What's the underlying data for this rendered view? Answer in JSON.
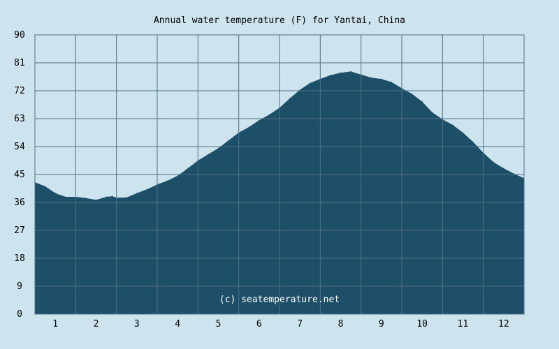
{
  "chart_data": {
    "type": "area",
    "title": "Annual water temperature (F) for Yantai, China",
    "xlabel": "",
    "ylabel": "",
    "x_ticks": [
      "1",
      "2",
      "3",
      "4",
      "5",
      "6",
      "7",
      "8",
      "9",
      "10",
      "11",
      "12"
    ],
    "y_ticks": [
      "0",
      "9",
      "18",
      "27",
      "36",
      "45",
      "54",
      "63",
      "72",
      "81",
      "90"
    ],
    "ylim": [
      0,
      90
    ],
    "xlim": [
      0.5,
      12.5
    ],
    "grid": true,
    "watermark": "(c) seatemperature.net",
    "colors": {
      "background": "#cde3ee",
      "fill": "#1e4f68",
      "grid": "#4f6f86"
    },
    "series": [
      {
        "x": [
          0.5,
          0.75,
          1.0,
          1.25,
          1.5,
          1.75,
          2.0,
          2.25,
          2.4,
          2.5,
          2.75,
          3.0,
          3.25,
          3.5,
          3.75,
          4.0,
          4.25,
          4.5,
          4.75,
          5.0,
          5.25,
          5.5,
          5.75,
          6.0,
          6.25,
          6.5,
          6.75,
          7.0,
          7.25,
          7.5,
          7.75,
          8.0,
          8.25,
          8.5,
          8.75,
          9.0,
          9.25,
          9.5,
          9.75,
          10.0,
          10.25,
          10.5,
          10.75,
          11.0,
          11.25,
          11.5,
          11.75,
          12.0,
          12.25,
          12.5
        ],
        "values": [
          42.5,
          41.2,
          39.0,
          37.8,
          37.8,
          37.4,
          36.8,
          37.8,
          38.0,
          37.5,
          37.6,
          39.0,
          40.2,
          41.8,
          43.0,
          44.6,
          47.0,
          49.5,
          51.5,
          53.5,
          56.0,
          58.5,
          60.3,
          62.5,
          64.3,
          66.5,
          69.5,
          72.3,
          74.5,
          75.8,
          77.0,
          77.8,
          78.2,
          77.2,
          76.2,
          75.8,
          74.8,
          72.8,
          71.0,
          68.5,
          65.0,
          62.8,
          61.0,
          58.5,
          55.5,
          52.0,
          49.0,
          47.0,
          45.3,
          43.8
        ]
      }
    ]
  }
}
